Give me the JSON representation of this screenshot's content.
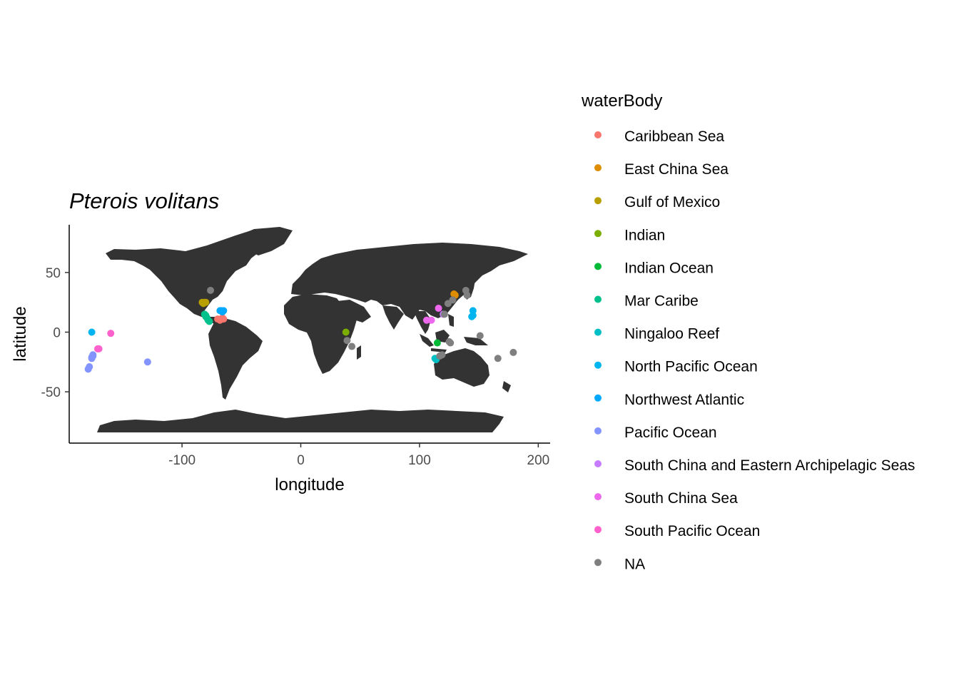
{
  "chart_data": {
    "type": "scatter",
    "title": "Pterois volitans",
    "xlabel": "longitude",
    "ylabel": "latitude",
    "xlim": [
      -195,
      210
    ],
    "ylim": [
      -93,
      90
    ],
    "x_ticks": [
      -100,
      0,
      100,
      200
    ],
    "x_tick_labels": [
      "-100",
      "0",
      "100",
      "200"
    ],
    "y_ticks": [
      -50,
      0,
      50
    ],
    "y_tick_labels": [
      "-50",
      "0",
      "50"
    ],
    "grid": false,
    "background": "world map (landmasses in dark grey)",
    "land_color": "#333333",
    "legend_title": "waterBody",
    "legend_position": "right",
    "series": [
      {
        "name": "Caribbean Sea",
        "color": "#F8766D",
        "points": [
          [
            -70,
            11
          ],
          [
            -67,
            11
          ],
          [
            -65,
            11
          ],
          [
            -68,
            10
          ],
          [
            -66,
            12
          ]
        ]
      },
      {
        "name": "East China Sea",
        "color": "#DE8C00",
        "points": [
          [
            130,
            31
          ],
          [
            129,
            32
          ]
        ]
      },
      {
        "name": "Gulf of Mexico",
        "color": "#B79F00",
        "points": [
          [
            -81,
            25
          ],
          [
            -83,
            25
          ],
          [
            -82,
            24
          ],
          [
            -80,
            25
          ]
        ]
      },
      {
        "name": "Indian",
        "color": "#7CAE00",
        "points": [
          [
            38,
            0
          ]
        ]
      },
      {
        "name": "Indian Ocean",
        "color": "#00BA38",
        "points": [
          [
            115,
            -9
          ]
        ]
      },
      {
        "name": "Mar Caribe",
        "color": "#00C08B",
        "points": [
          [
            -78,
            10
          ],
          [
            -80,
            13
          ],
          [
            -81,
            15
          ],
          [
            -77,
            9
          ],
          [
            -79,
            12
          ],
          [
            -80,
            14
          ]
        ]
      },
      {
        "name": "Ningaloo Reef",
        "color": "#00BFC4",
        "points": [
          [
            114,
            -23
          ],
          [
            113,
            -22
          ]
        ]
      },
      {
        "name": "North Pacific Ocean",
        "color": "#00B4F0",
        "points": [
          [
            -176,
            0
          ],
          [
            145,
            18
          ],
          [
            145,
            14
          ],
          [
            144,
            13
          ]
        ]
      },
      {
        "name": "Northwest Atlantic",
        "color": "#00A9FF",
        "points": [
          [
            -67,
            18
          ],
          [
            -65,
            18
          ],
          [
            -66,
            17
          ],
          [
            -68,
            18
          ]
        ]
      },
      {
        "name": "Pacific Ocean",
        "color": "#8494FF",
        "points": [
          [
            -179,
            -31
          ],
          [
            -178,
            -29
          ],
          [
            -176,
            -22
          ],
          [
            -175,
            -20
          ],
          [
            -176,
            -21
          ],
          [
            -175,
            -19
          ],
          [
            -129,
            -25
          ]
        ]
      },
      {
        "name": "South China and Eastern Archipelagic Seas",
        "color": "#C77CFF",
        "points": [
          [
            120,
            15
          ]
        ]
      },
      {
        "name": "South China Sea",
        "color": "#ED68ED",
        "points": [
          [
            106,
            10
          ],
          [
            110,
            10
          ],
          [
            116,
            20
          ]
        ]
      },
      {
        "name": "South Pacific Ocean",
        "color": "#FF61CC",
        "points": [
          [
            -171,
            -14
          ],
          [
            -160,
            -1
          ],
          [
            -170,
            -14
          ]
        ]
      },
      {
        "name": "NA",
        "color": "#7F7F7F",
        "points": [
          [
            -76,
            35
          ],
          [
            39,
            -7
          ],
          [
            43,
            -12
          ],
          [
            119,
            -19
          ],
          [
            117,
            -20
          ],
          [
            121,
            15
          ],
          [
            124,
            24
          ],
          [
            128,
            27
          ],
          [
            139,
            35
          ],
          [
            140,
            31
          ],
          [
            151,
            -3
          ],
          [
            166,
            -22
          ],
          [
            179,
            -17
          ],
          [
            125,
            -8
          ],
          [
            126,
            -9
          ]
        ]
      }
    ]
  }
}
